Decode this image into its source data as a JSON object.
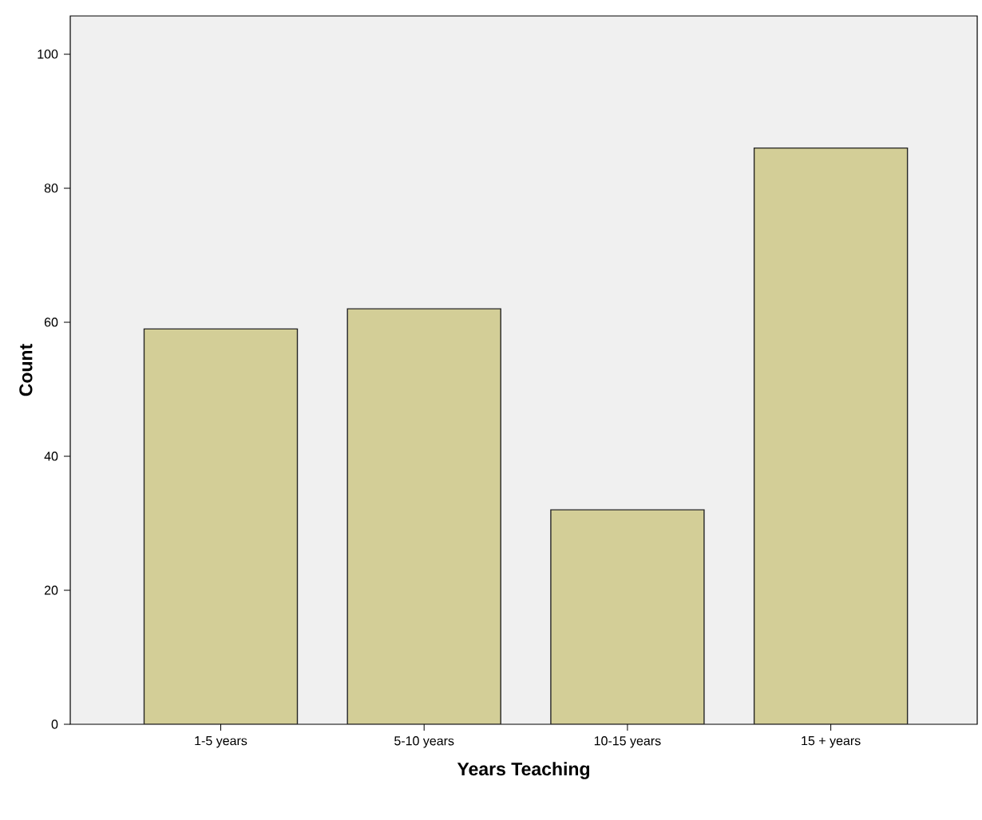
{
  "chart_data": {
    "type": "bar",
    "xlabel": "Years Teaching",
    "ylabel": "Count",
    "categories": [
      "1-5 years",
      "5-10 years",
      "10-15 years",
      "15 + years"
    ],
    "values": [
      59,
      62,
      32,
      86
    ],
    "color": "#d3ce97",
    "ylim": [
      0,
      105.7
    ],
    "yticks": [
      0,
      20,
      40,
      60,
      80,
      100
    ]
  }
}
